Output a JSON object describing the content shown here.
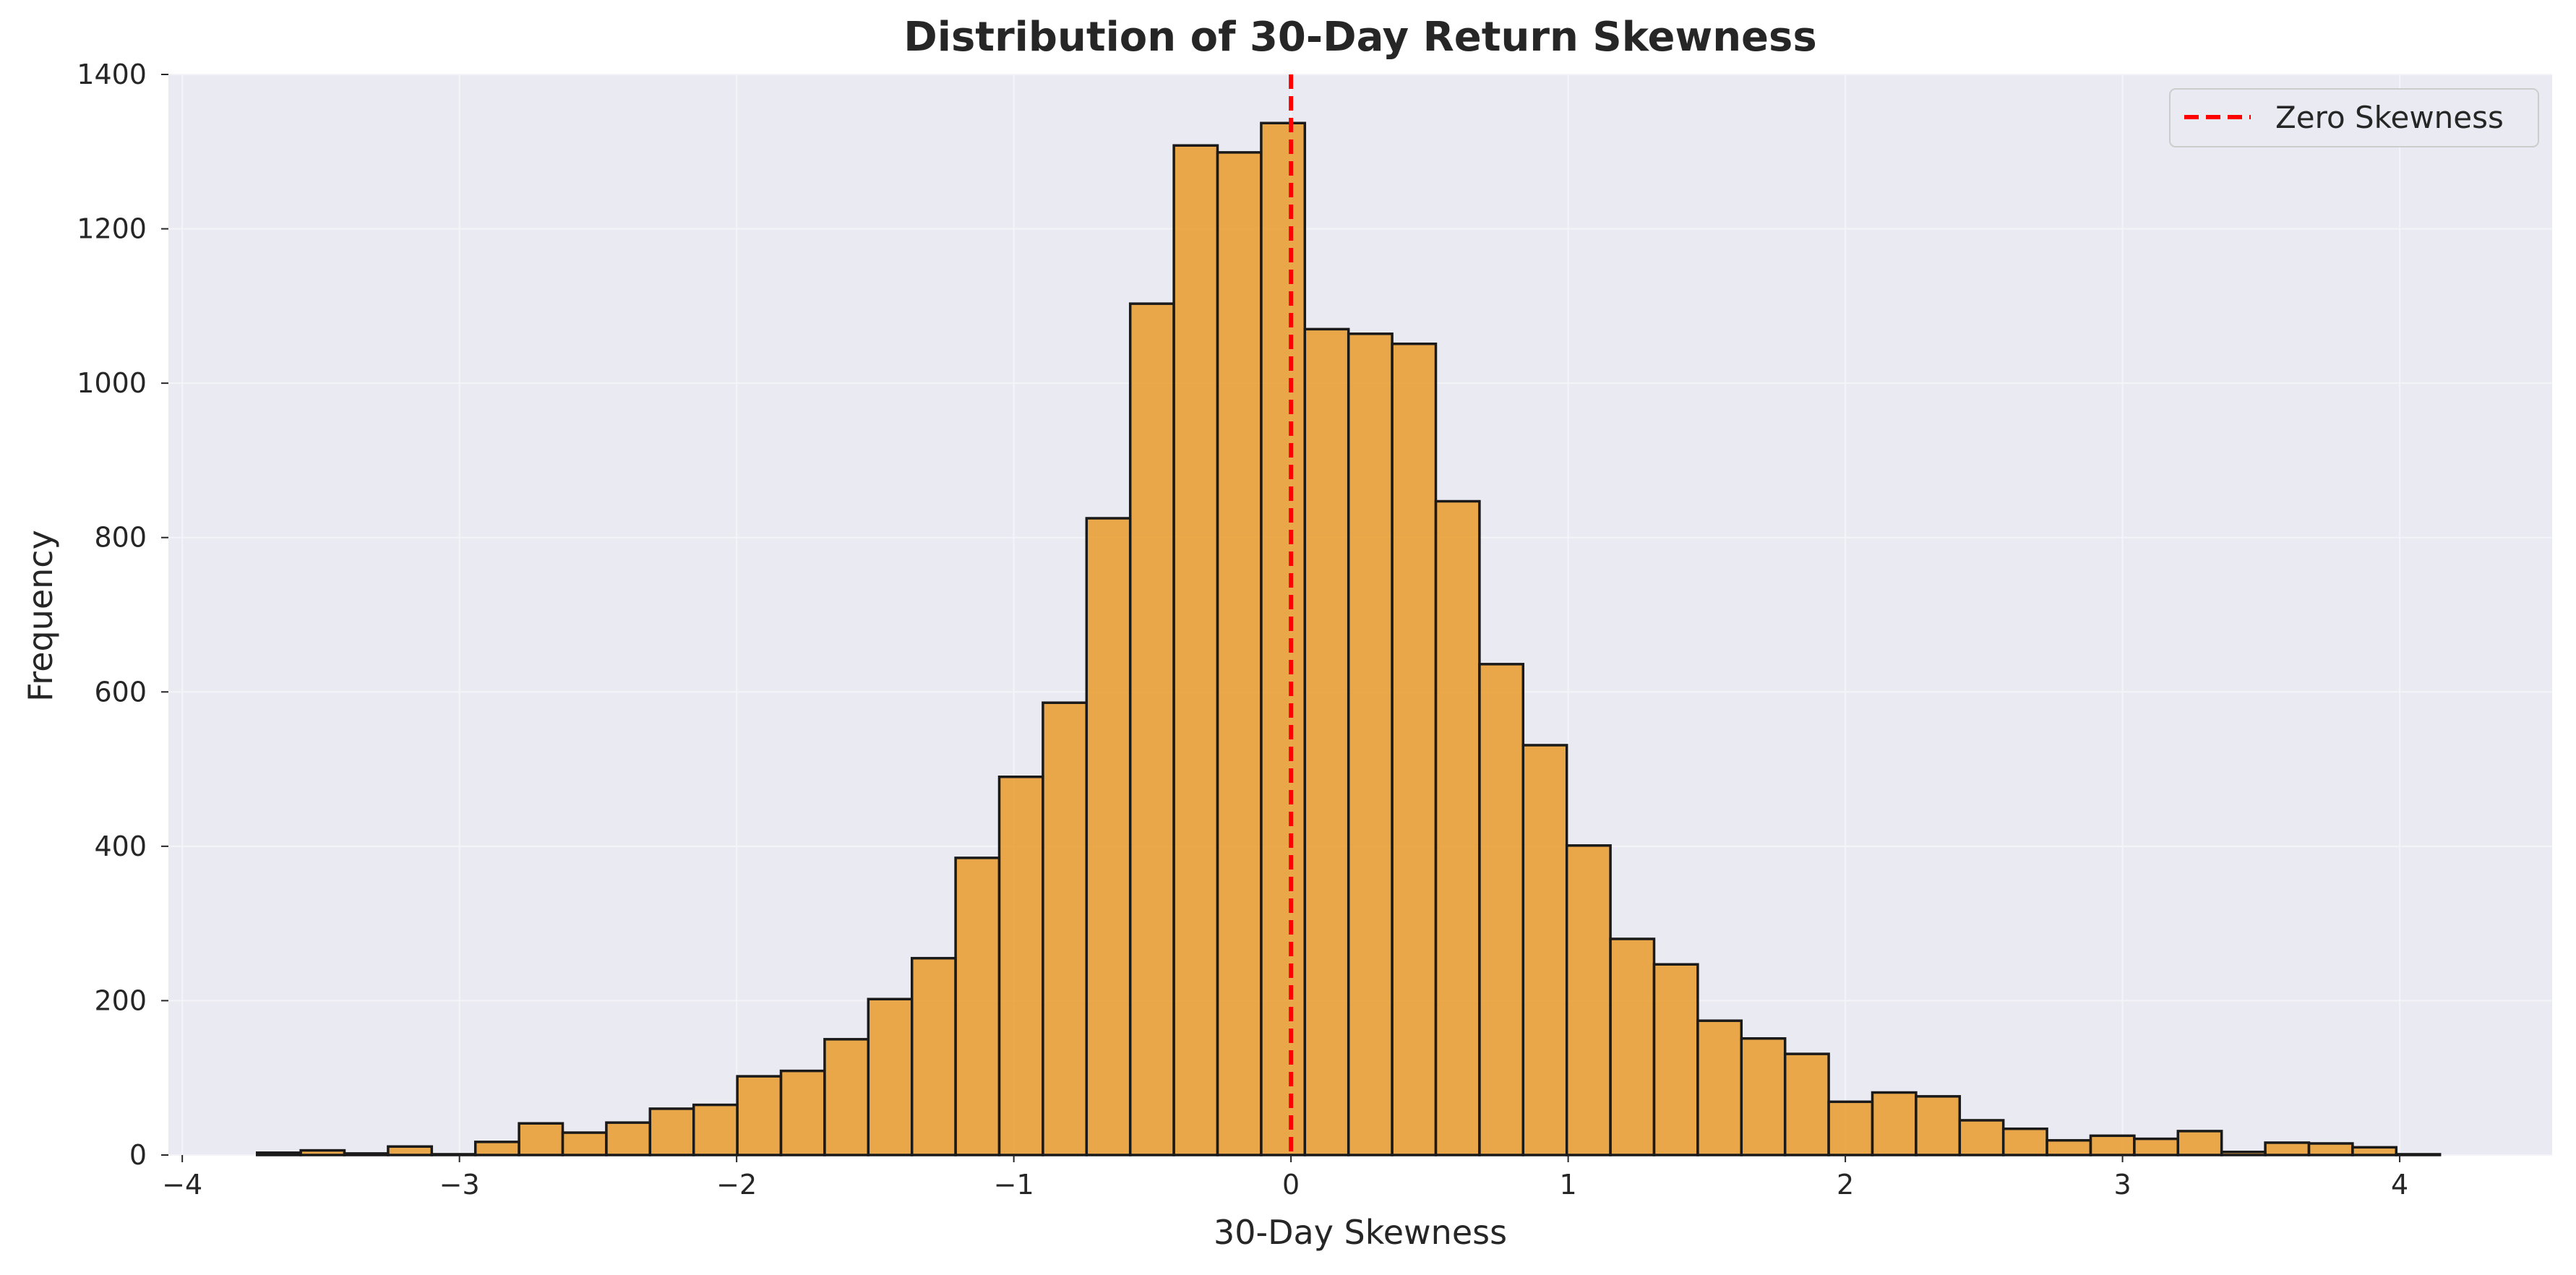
{
  "chart_data": {
    "type": "bar",
    "title": "Distribution of 30-Day Return Skewness",
    "xlabel": "30-Day Skewness",
    "ylabel": "Frequency",
    "xlim": [
      -4.05,
      4.55
    ],
    "ylim": [
      0,
      1400
    ],
    "xticks": [
      -4,
      -3,
      -2,
      -1,
      0,
      1,
      2,
      3,
      4
    ],
    "xtick_labels": [
      "−4",
      "−3",
      "−2",
      "−1",
      "0",
      "1",
      "2",
      "3",
      "4"
    ],
    "yticks": [
      0,
      200,
      400,
      600,
      800,
      1000,
      1200,
      1400
    ],
    "ytick_labels": [
      "0",
      "200",
      "400",
      "600",
      "800",
      "1000",
      "1200",
      "1400"
    ],
    "grid": true,
    "bin_start": -3.73,
    "bin_width": 0.1575,
    "values": [
      3,
      6,
      2,
      11,
      1,
      17,
      41,
      29,
      42,
      60,
      65,
      102,
      109,
      150,
      202,
      255,
      385,
      490,
      586,
      825,
      1103,
      1308,
      1299,
      1337,
      1070,
      1064,
      1051,
      847,
      636,
      531,
      401,
      280,
      247,
      174,
      151,
      131,
      69,
      81,
      76,
      45,
      34,
      19,
      25,
      21,
      31,
      4,
      16,
      15,
      10,
      1
    ],
    "bar_color": "#E8961E",
    "bar_edge_color": "#1a1a1a",
    "bar_alpha": 0.8,
    "reference_line": {
      "x": 0,
      "label": "Zero Skewness",
      "color": "#ff0000",
      "style": "dashed"
    },
    "legend": {
      "entries": [
        "Zero Skewness"
      ],
      "placement": "top-right"
    }
  }
}
